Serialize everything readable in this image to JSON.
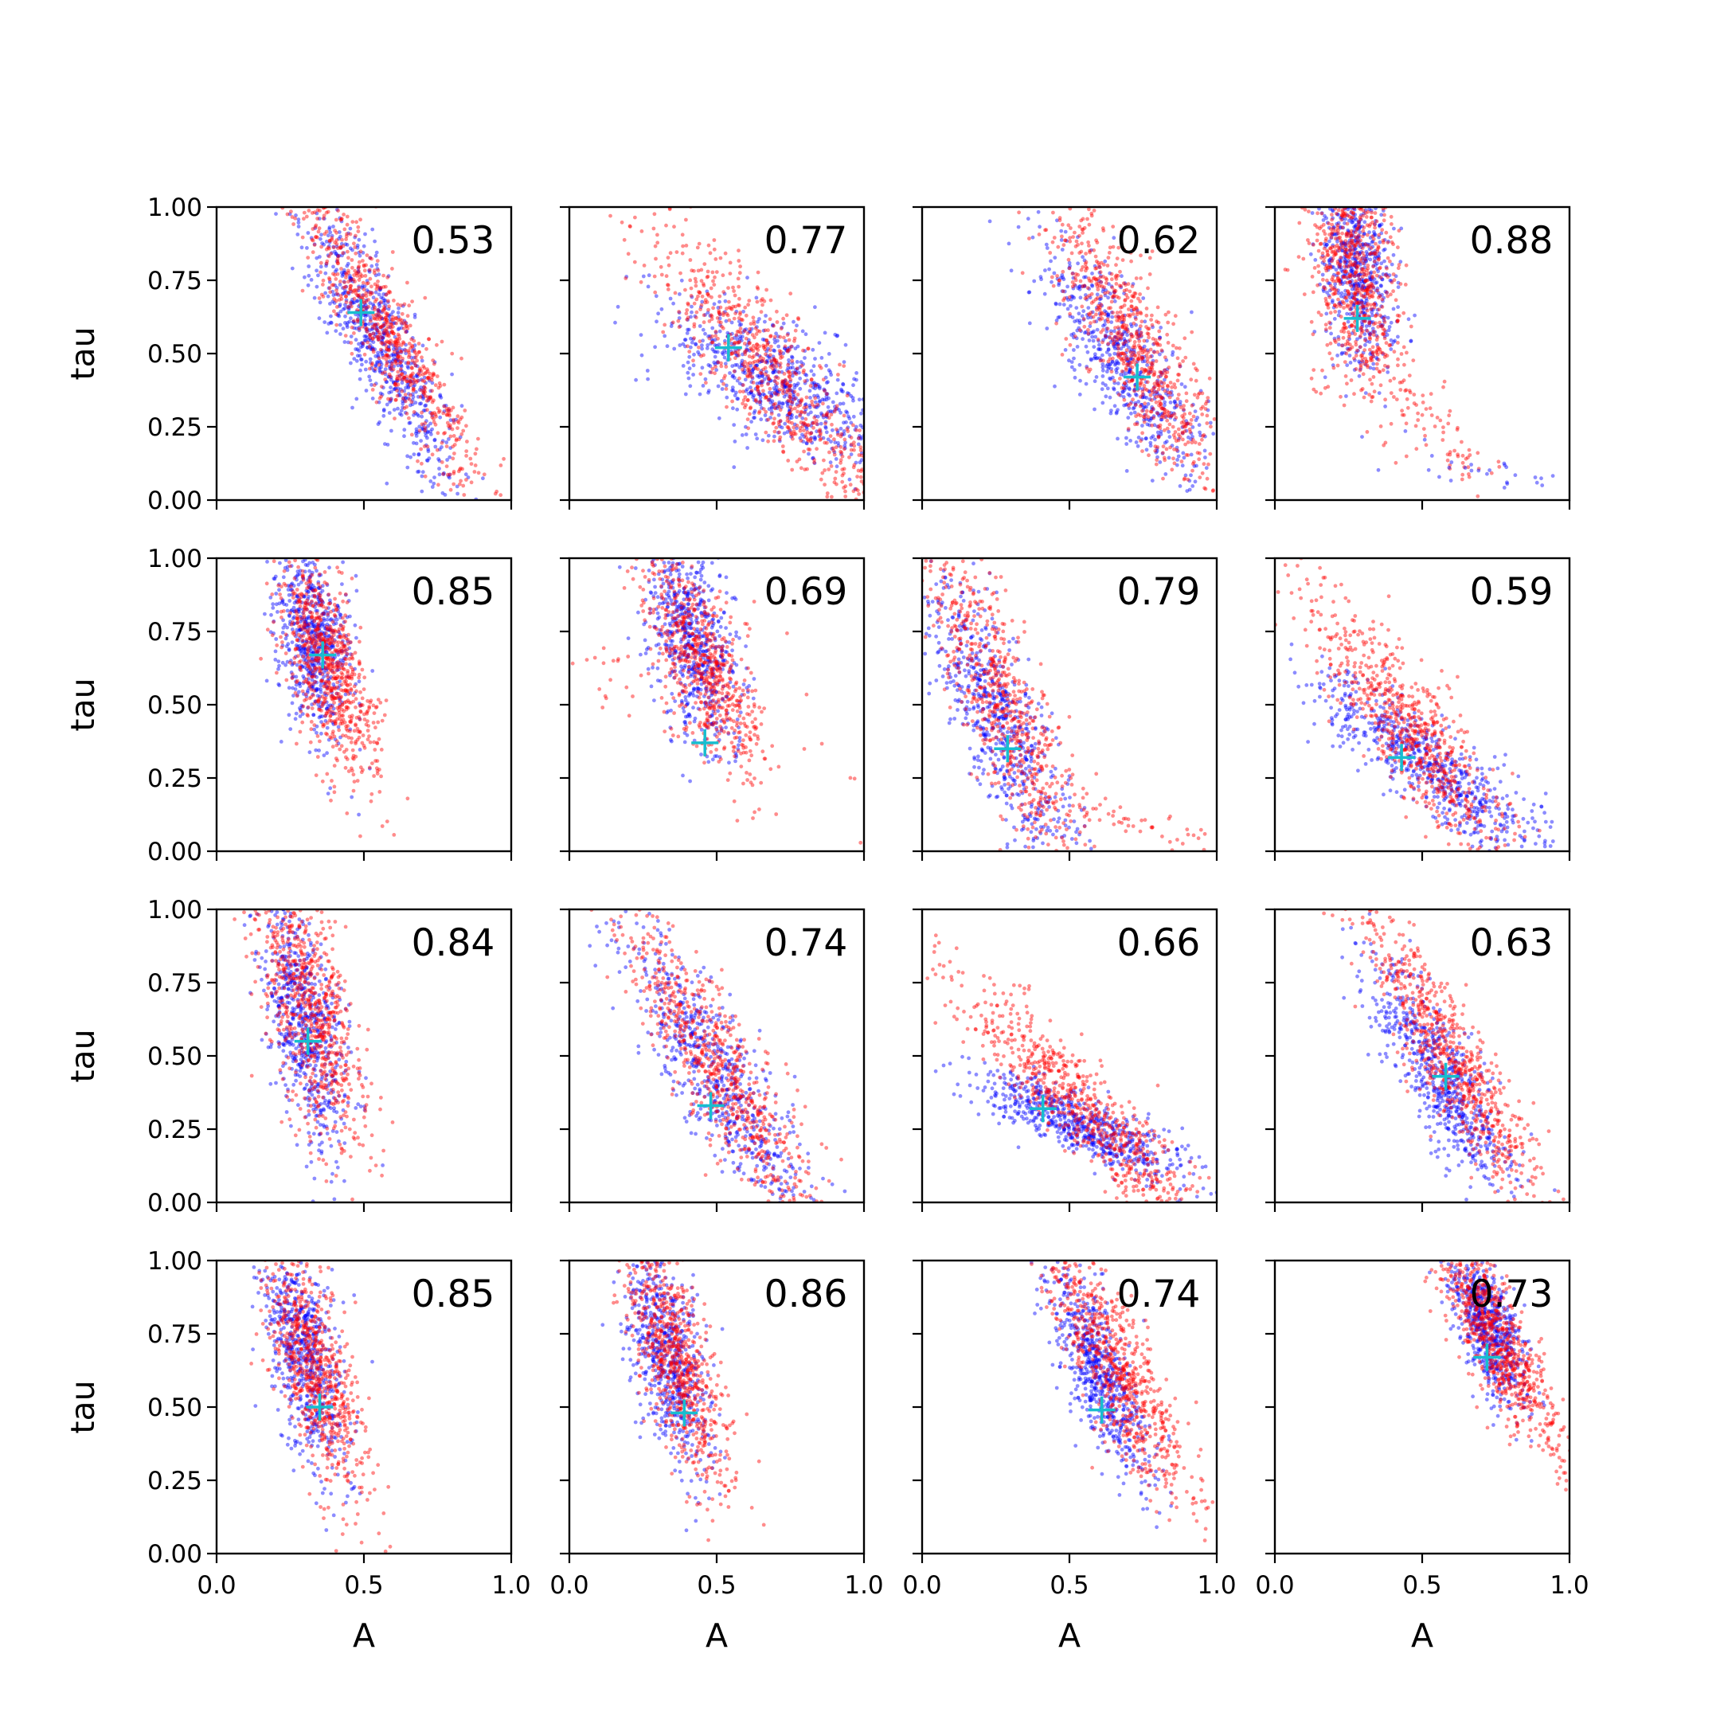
{
  "chart_data": {
    "type": "scatter",
    "layout": {
      "rows": 4,
      "cols": 4
    },
    "xlabel": "A",
    "ylabel": "tau",
    "xlim": [
      0.0,
      1.0
    ],
    "ylim": [
      0.0,
      1.0
    ],
    "xticks": [
      "0.0",
      "0.5",
      "1.0"
    ],
    "yticks": [
      "0.00",
      "0.25",
      "0.50",
      "0.75",
      "1.00"
    ],
    "grid": false,
    "colors": {
      "blue": "#0000ff",
      "red": "#ff0000",
      "marker": "#17becf",
      "axis": "#000000"
    },
    "panels": [
      {
        "score": "0.53",
        "cross": [
          0.49,
          0.64
        ],
        "clouds": [
          {
            "color": "blue",
            "n": 700,
            "cx": 0.55,
            "cy": 0.55,
            "axis": [
              0.3,
              -0.6
            ],
            "len": 0.26,
            "wid": 0.06
          },
          {
            "color": "red",
            "n": 750,
            "cx": 0.56,
            "cy": 0.6,
            "axis": [
              0.4,
              -0.7
            ],
            "len": 0.32,
            "wid": 0.06
          }
        ]
      },
      {
        "score": "0.77",
        "cross": [
          0.54,
          0.52
        ],
        "clouds": [
          {
            "color": "blue",
            "n": 700,
            "cx": 0.7,
            "cy": 0.4,
            "axis": [
              0.8,
              -0.5
            ],
            "len": 0.22,
            "wid": 0.09
          },
          {
            "color": "red",
            "n": 750,
            "cx": 0.7,
            "cy": 0.42,
            "axis": [
              0.55,
              -0.7
            ],
            "len": 0.34,
            "wid": 0.08
          }
        ]
      },
      {
        "score": "0.62",
        "cross": [
          0.73,
          0.42
        ],
        "clouds": [
          {
            "color": "blue",
            "n": 600,
            "cx": 0.68,
            "cy": 0.48,
            "axis": [
              0.5,
              -0.8
            ],
            "len": 0.24,
            "wid": 0.07
          },
          {
            "color": "red",
            "n": 750,
            "cx": 0.72,
            "cy": 0.52,
            "axis": [
              0.45,
              -0.85
            ],
            "len": 0.3,
            "wid": 0.07
          }
        ]
      },
      {
        "score": "0.88",
        "cross": [
          0.28,
          0.62
        ],
        "clouds": [
          {
            "color": "blue",
            "n": 650,
            "cx": 0.28,
            "cy": 0.8,
            "axis": [
              0.1,
              -1.0
            ],
            "len": 0.18,
            "wid": 0.06
          },
          {
            "color": "red",
            "n": 750,
            "cx": 0.27,
            "cy": 0.78,
            "axis": [
              0.15,
              -1.0
            ],
            "len": 0.22,
            "wid": 0.07
          },
          {
            "color": "red",
            "n": 90,
            "cx": 0.55,
            "cy": 0.25,
            "axis": [
              0.6,
              -0.8
            ],
            "len": 0.22,
            "wid": 0.05
          },
          {
            "color": "blue",
            "n": 25,
            "cx": 0.7,
            "cy": 0.1,
            "axis": [
              1.0,
              -0.2
            ],
            "len": 0.15,
            "wid": 0.03
          }
        ]
      },
      {
        "score": "0.85",
        "cross": [
          0.36,
          0.67
        ],
        "clouds": [
          {
            "color": "blue",
            "n": 650,
            "cx": 0.33,
            "cy": 0.72,
            "axis": [
              0.15,
              -1.0
            ],
            "len": 0.16,
            "wid": 0.06
          },
          {
            "color": "red",
            "n": 750,
            "cx": 0.38,
            "cy": 0.62,
            "axis": [
              0.3,
              -1.0
            ],
            "len": 0.2,
            "wid": 0.06
          }
        ]
      },
      {
        "score": "0.69",
        "cross": [
          0.46,
          0.37
        ],
        "clouds": [
          {
            "color": "blue",
            "n": 650,
            "cx": 0.42,
            "cy": 0.72,
            "axis": [
              0.2,
              -1.0
            ],
            "len": 0.18,
            "wid": 0.07
          },
          {
            "color": "red",
            "n": 650,
            "cx": 0.45,
            "cy": 0.65,
            "axis": [
              0.35,
              -0.95
            ],
            "len": 0.22,
            "wid": 0.07
          },
          {
            "color": "red",
            "n": 60,
            "cx": 0.3,
            "cy": 0.55,
            "axis": [
              0.9,
              -0.45
            ],
            "len": 0.28,
            "wid": 0.1
          }
        ]
      },
      {
        "score": "0.79",
        "cross": [
          0.29,
          0.35
        ],
        "clouds": [
          {
            "color": "blue",
            "n": 650,
            "cx": 0.26,
            "cy": 0.45,
            "axis": [
              0.4,
              -0.9
            ],
            "len": 0.28,
            "wid": 0.07
          },
          {
            "color": "red",
            "n": 700,
            "cx": 0.27,
            "cy": 0.5,
            "axis": [
              0.35,
              -0.9
            ],
            "len": 0.33,
            "wid": 0.07
          },
          {
            "color": "red",
            "n": 60,
            "cx": 0.7,
            "cy": 0.1,
            "axis": [
              1.0,
              -0.25
            ],
            "len": 0.18,
            "wid": 0.03
          }
        ]
      },
      {
        "score": "0.59",
        "cross": [
          0.43,
          0.32
        ],
        "clouds": [
          {
            "color": "blue",
            "n": 650,
            "cx": 0.52,
            "cy": 0.3,
            "axis": [
              0.75,
              -0.6
            ],
            "len": 0.24,
            "wid": 0.06
          },
          {
            "color": "red",
            "n": 750,
            "cx": 0.47,
            "cy": 0.4,
            "axis": [
              0.55,
              -0.75
            ],
            "len": 0.3,
            "wid": 0.07
          }
        ]
      },
      {
        "score": "0.84",
        "cross": [
          0.31,
          0.55
        ],
        "clouds": [
          {
            "color": "blue",
            "n": 650,
            "cx": 0.3,
            "cy": 0.62,
            "axis": [
              0.2,
              -1.0
            ],
            "len": 0.22,
            "wid": 0.06
          },
          {
            "color": "red",
            "n": 750,
            "cx": 0.32,
            "cy": 0.66,
            "axis": [
              0.25,
              -1.0
            ],
            "len": 0.25,
            "wid": 0.07
          }
        ]
      },
      {
        "score": "0.74",
        "cross": [
          0.48,
          0.33
        ],
        "clouds": [
          {
            "color": "blue",
            "n": 650,
            "cx": 0.5,
            "cy": 0.42,
            "axis": [
              0.5,
              -0.85
            ],
            "len": 0.28,
            "wid": 0.07
          },
          {
            "color": "red",
            "n": 750,
            "cx": 0.52,
            "cy": 0.44,
            "axis": [
              0.5,
              -0.85
            ],
            "len": 0.34,
            "wid": 0.07
          }
        ]
      },
      {
        "score": "0.66",
        "cross": [
          0.41,
          0.32
        ],
        "clouds": [
          {
            "color": "blue",
            "n": 650,
            "cx": 0.55,
            "cy": 0.26,
            "axis": [
              0.9,
              -0.4
            ],
            "len": 0.2,
            "wid": 0.05
          },
          {
            "color": "red",
            "n": 750,
            "cx": 0.55,
            "cy": 0.32,
            "axis": [
              0.7,
              -0.7
            ],
            "len": 0.3,
            "wid": 0.06
          }
        ]
      },
      {
        "score": "0.63",
        "cross": [
          0.58,
          0.43
        ],
        "clouds": [
          {
            "color": "blue",
            "n": 650,
            "cx": 0.55,
            "cy": 0.45,
            "axis": [
              0.5,
              -0.85
            ],
            "len": 0.22,
            "wid": 0.06
          },
          {
            "color": "red",
            "n": 750,
            "cx": 0.6,
            "cy": 0.48,
            "axis": [
              0.5,
              -0.85
            ],
            "len": 0.3,
            "wid": 0.06
          }
        ]
      },
      {
        "score": "0.85",
        "cross": [
          0.35,
          0.5
        ],
        "clouds": [
          {
            "color": "blue",
            "n": 650,
            "cx": 0.3,
            "cy": 0.68,
            "axis": [
              0.2,
              -1.0
            ],
            "len": 0.2,
            "wid": 0.06
          },
          {
            "color": "red",
            "n": 750,
            "cx": 0.33,
            "cy": 0.64,
            "axis": [
              0.3,
              -1.0
            ],
            "len": 0.23,
            "wid": 0.06
          }
        ]
      },
      {
        "score": "0.86",
        "cross": [
          0.39,
          0.48
        ],
        "clouds": [
          {
            "color": "blue",
            "n": 650,
            "cx": 0.33,
            "cy": 0.68,
            "axis": [
              0.25,
              -1.0
            ],
            "len": 0.2,
            "wid": 0.06
          },
          {
            "color": "red",
            "n": 750,
            "cx": 0.36,
            "cy": 0.66,
            "axis": [
              0.3,
              -1.0
            ],
            "len": 0.24,
            "wid": 0.06
          }
        ]
      },
      {
        "score": "0.74",
        "cross": [
          0.61,
          0.49
        ],
        "clouds": [
          {
            "color": "blue",
            "n": 650,
            "cx": 0.6,
            "cy": 0.62,
            "axis": [
              0.35,
              -0.9
            ],
            "len": 0.2,
            "wid": 0.05
          },
          {
            "color": "red",
            "n": 750,
            "cx": 0.66,
            "cy": 0.64,
            "axis": [
              0.45,
              -0.9
            ],
            "len": 0.26,
            "wid": 0.06
          }
        ]
      },
      {
        "score": "0.73",
        "cross": [
          0.72,
          0.67
        ],
        "clouds": [
          {
            "color": "blue",
            "n": 650,
            "cx": 0.72,
            "cy": 0.78,
            "axis": [
              0.35,
              -0.95
            ],
            "len": 0.14,
            "wid": 0.05
          },
          {
            "color": "red",
            "n": 750,
            "cx": 0.76,
            "cy": 0.72,
            "axis": [
              0.45,
              -0.9
            ],
            "len": 0.2,
            "wid": 0.05
          }
        ]
      }
    ]
  }
}
